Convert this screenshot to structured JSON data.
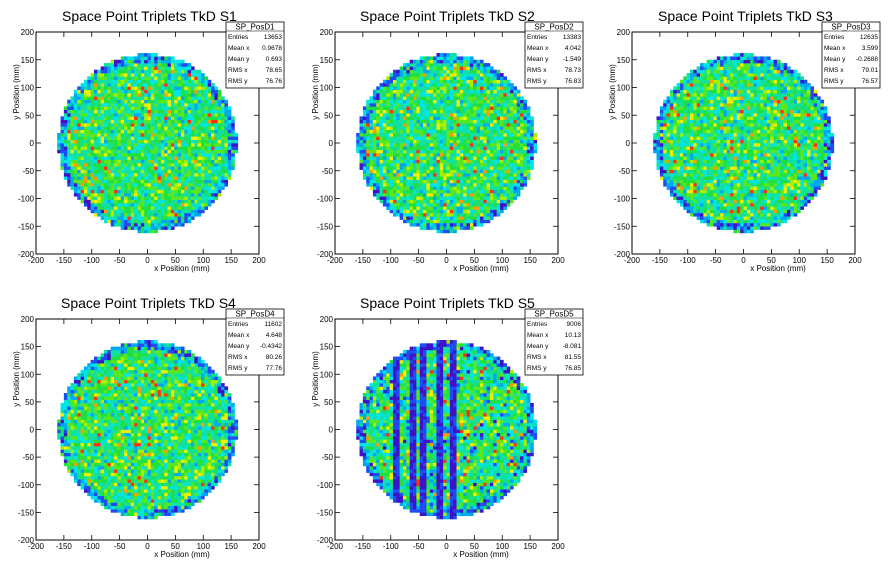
{
  "chart_data": [
    {
      "type": "heatmap",
      "title": "Space Point Triplets TkD S1",
      "xlabel": "x Position (mm)",
      "ylabel": "y Position (mm)",
      "xlim": [
        -200,
        200
      ],
      "ylim": [
        -200,
        200
      ],
      "xticks": [
        -200,
        -150,
        -100,
        -50,
        0,
        50,
        100,
        150,
        200
      ],
      "yticks": [
        -200,
        -150,
        -100,
        -50,
        0,
        50,
        100,
        150,
        200
      ],
      "stats": {
        "name": "SP_PosD1",
        "rows": [
          {
            "label": "Entries",
            "value": "13653"
          },
          {
            "label": "Mean x",
            "value": "0.9678"
          },
          {
            "label": "Mean y",
            "value": "0.693"
          },
          {
            "label": "RMS x",
            "value": "78.65"
          },
          {
            "label": "RMS y",
            "value": "76.76"
          }
        ]
      },
      "radius": 160,
      "bin_width": 6,
      "low_column_x": []
    },
    {
      "type": "heatmap",
      "title": "Space Point Triplets TkD S2",
      "xlabel": "x Position (mm)",
      "ylabel": "y Position (mm)",
      "xlim": [
        -200,
        200
      ],
      "ylim": [
        -200,
        200
      ],
      "xticks": [
        -200,
        -150,
        -100,
        -50,
        0,
        50,
        100,
        150,
        200
      ],
      "yticks": [
        -200,
        -150,
        -100,
        -50,
        0,
        50,
        100,
        150,
        200
      ],
      "stats": {
        "name": "SP_PosD2",
        "rows": [
          {
            "label": "Entries",
            "value": "13383"
          },
          {
            "label": "Mean x",
            "value": "4.042"
          },
          {
            "label": "Mean y",
            "value": "-1.549"
          },
          {
            "label": "RMS x",
            "value": "78.73"
          },
          {
            "label": "RMS y",
            "value": "76.83"
          }
        ]
      },
      "radius": 160,
      "bin_width": 6,
      "low_column_x": []
    },
    {
      "type": "heatmap",
      "title": "Space Point Triplets TkD S3",
      "xlabel": "x Position (mm)",
      "ylabel": "y Position (mm)",
      "xlim": [
        -200,
        200
      ],
      "ylim": [
        -200,
        200
      ],
      "xticks": [
        -200,
        -150,
        -100,
        -50,
        0,
        50,
        100,
        150,
        200
      ],
      "yticks": [
        -200,
        -150,
        -100,
        -50,
        0,
        50,
        100,
        150,
        200
      ],
      "stats": {
        "name": "SP_PosD3",
        "rows": [
          {
            "label": "Entries",
            "value": "12635"
          },
          {
            "label": "Mean x",
            "value": "3.599"
          },
          {
            "label": "Mean y",
            "value": "-0.2688"
          },
          {
            "label": "RMS x",
            "value": "79.01"
          },
          {
            "label": "RMS y",
            "value": "76.57"
          }
        ]
      },
      "radius": 160,
      "bin_width": 6,
      "low_column_x": []
    },
    {
      "type": "heatmap",
      "title": "Space Point Triplets TkD S4",
      "xlabel": "x Position (mm)",
      "ylabel": "y Position (mm)",
      "xlim": [
        -200,
        200
      ],
      "ylim": [
        -200,
        200
      ],
      "xticks": [
        -200,
        -150,
        -100,
        -50,
        0,
        50,
        100,
        150,
        200
      ],
      "yticks": [
        -200,
        -150,
        -100,
        -50,
        0,
        50,
        100,
        150,
        200
      ],
      "stats": {
        "name": "SP_PosD4",
        "rows": [
          {
            "label": "Entries",
            "value": "11602"
          },
          {
            "label": "Mean x",
            "value": "4.648"
          },
          {
            "label": "Mean y",
            "value": "-0.4342"
          },
          {
            "label": "RMS x",
            "value": "80.26"
          },
          {
            "label": "RMS y",
            "value": "77.76"
          }
        ]
      },
      "radius": 160,
      "bin_width": 6,
      "low_column_x": []
    },
    {
      "type": "heatmap",
      "title": "Space Point Triplets TkD S5",
      "xlabel": "x Position (mm)",
      "ylabel": "y Position (mm)",
      "xlim": [
        -200,
        200
      ],
      "ylim": [
        -200,
        200
      ],
      "xticks": [
        -200,
        -150,
        -100,
        -50,
        0,
        50,
        100,
        150,
        200
      ],
      "yticks": [
        -200,
        -150,
        -100,
        -50,
        0,
        50,
        100,
        150,
        200
      ],
      "stats": {
        "name": "SP_PosD5",
        "rows": [
          {
            "label": "Entries",
            "value": "9006"
          },
          {
            "label": "Mean x",
            "value": "10.13"
          },
          {
            "label": "Mean y",
            "value": "-8.081"
          },
          {
            "label": "RMS x",
            "value": "81.55"
          },
          {
            "label": "RMS y",
            "value": "76.85"
          }
        ]
      },
      "radius": 160,
      "bin_width": 6,
      "low_column_x": [
        -90,
        -60,
        -40,
        -10,
        10
      ]
    }
  ],
  "palette": [
    "#3d12c8",
    "#1f4cf2",
    "#00a8f0",
    "#00e6e6",
    "#10e0a0",
    "#20e040",
    "#58e820",
    "#a8f000",
    "#f0f000",
    "#ff9a00",
    "#ff3010",
    "#e00000"
  ]
}
